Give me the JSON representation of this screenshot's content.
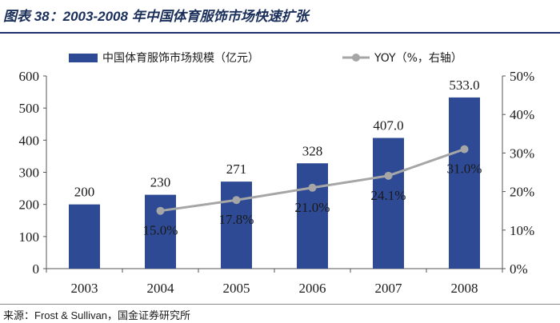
{
  "header": {
    "title": "图表 38：2003-2008 年中国体育服饰市场快速扩张"
  },
  "footer": {
    "source": "来源：Frost & Sullivan，国金证券研究所"
  },
  "colors": {
    "bar": "#2e4a94",
    "line": "#a6a6a6",
    "marker": "#a6a6a6",
    "axis": "#555555"
  },
  "chart_data": {
    "type": "bar",
    "title": "2003-2008 年中国体育服饰市场快速扩张",
    "categories": [
      "2003",
      "2004",
      "2005",
      "2006",
      "2007",
      "2008"
    ],
    "series": [
      {
        "name": "中国体育服饰市场规模（亿元）",
        "type": "bar",
        "axis": "left",
        "values": [
          200,
          230,
          271,
          328,
          407,
          533
        ],
        "labels": [
          "200",
          "230",
          "271",
          "328",
          "407.0",
          "533.0"
        ]
      },
      {
        "name": "YOY（%，右轴）",
        "type": "line",
        "axis": "right",
        "x": [
          "2004",
          "2005",
          "2006",
          "2007",
          "2008"
        ],
        "values": [
          15.0,
          17.8,
          21.0,
          24.1,
          31.0
        ],
        "labels": [
          "15.0%",
          "17.8%",
          "21.0%",
          "24.1%",
          "31.0%"
        ]
      }
    ],
    "left_axis": {
      "min": 0,
      "max": 600,
      "ticks": [
        "0",
        "100",
        "200",
        "300",
        "400",
        "500",
        "600"
      ]
    },
    "right_axis": {
      "min": 0,
      "max": 50,
      "ticks": [
        "0%",
        "10%",
        "20%",
        "30%",
        "40%",
        "50%"
      ]
    },
    "legend_position": "top",
    "grid": false
  }
}
